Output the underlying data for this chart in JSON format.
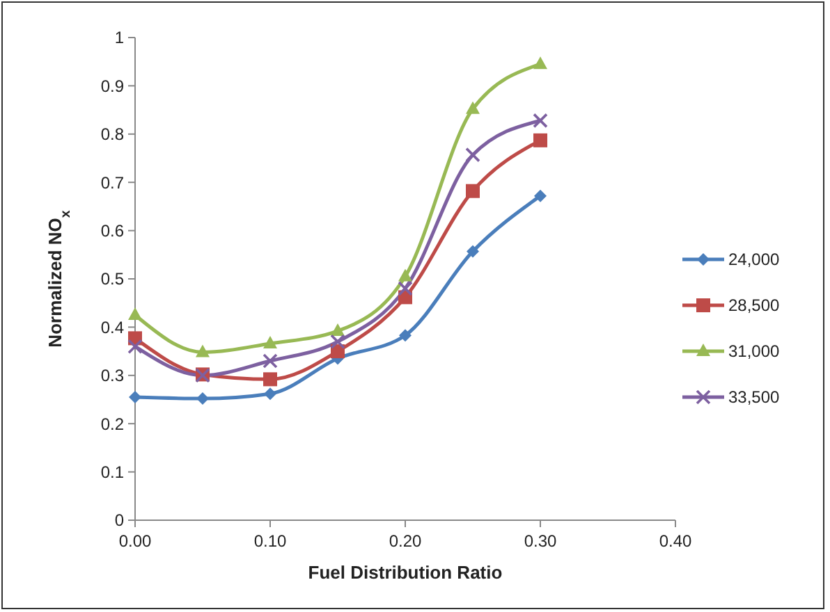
{
  "chart_data": {
    "type": "line",
    "xlabel": "Fuel Distribution Ratio",
    "ylabel": "Normalized NO$_{x}$",
    "x": [
      0,
      0.05,
      0.1,
      0.15,
      0.2,
      0.25,
      0.3
    ],
    "xlim": [
      0,
      0.4
    ],
    "xticks": [
      {
        "value": 0,
        "label": "0.00"
      },
      {
        "value": 0.1,
        "label": "0.10"
      },
      {
        "value": 0.2,
        "label": "0.20"
      },
      {
        "value": 0.3,
        "label": "0.30"
      },
      {
        "value": 0.4,
        "label": "0.40"
      }
    ],
    "ylim": [
      0,
      1
    ],
    "yticks": [
      0,
      0.1,
      0.2,
      0.3,
      0.4,
      0.5,
      0.6,
      0.7,
      0.8,
      0.9,
      1
    ],
    "grid": false,
    "legend": "right",
    "series": [
      {
        "name": "24,000",
        "color": "#4a7ebb",
        "marker": "diamond",
        "values": [
          0.255,
          0.252,
          0.262,
          0.335,
          0.383,
          0.557,
          0.672
        ]
      },
      {
        "name": "28,500",
        "color": "#be4b48",
        "marker": "square",
        "values": [
          0.377,
          0.302,
          0.292,
          0.35,
          0.462,
          0.682,
          0.787
        ]
      },
      {
        "name": "31,000",
        "color": "#98b954",
        "marker": "triangle",
        "values": [
          0.425,
          0.348,
          0.366,
          0.392,
          0.505,
          0.852,
          0.945
        ]
      },
      {
        "name": "33,500",
        "color": "#7d60a0",
        "marker": "cross",
        "values": [
          0.36,
          0.3,
          0.33,
          0.37,
          0.48,
          0.757,
          0.828
        ]
      }
    ]
  }
}
